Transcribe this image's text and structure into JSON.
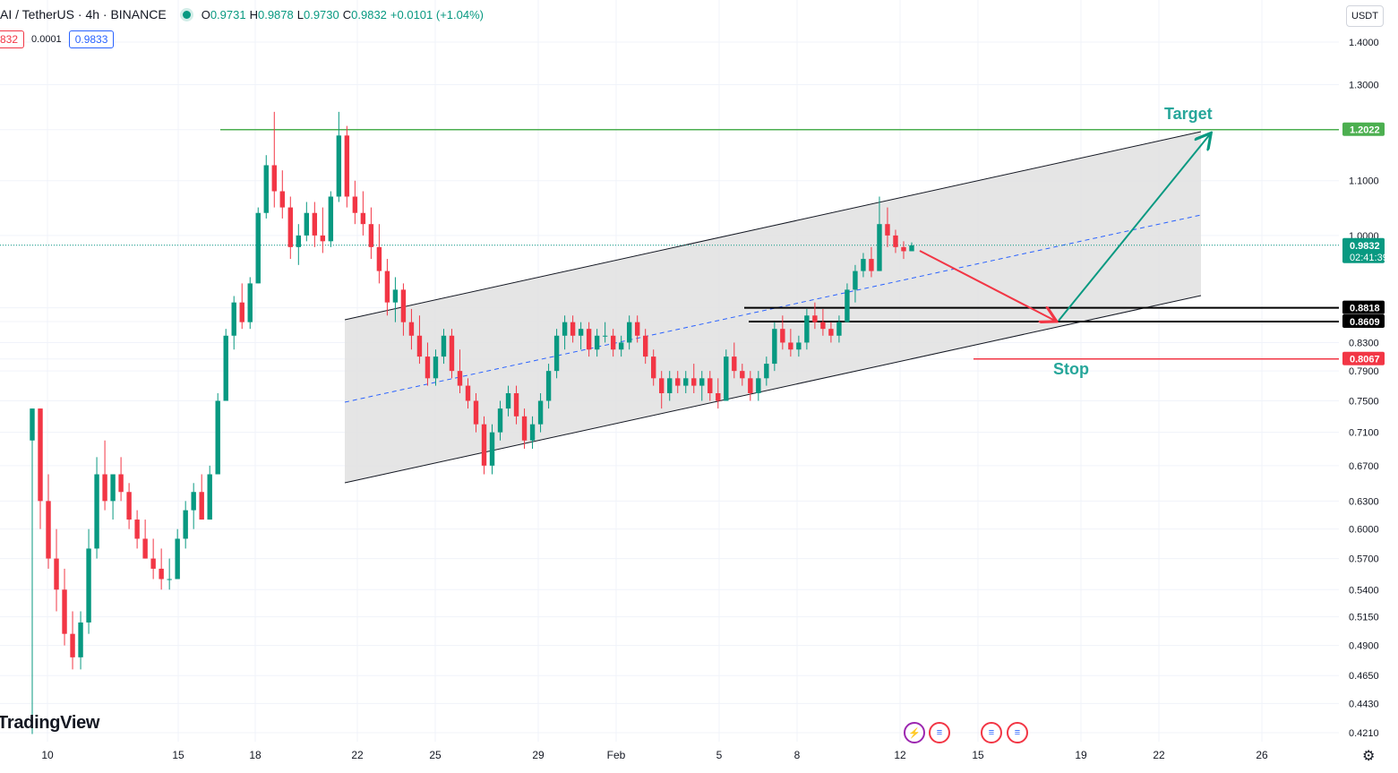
{
  "header": {
    "symbol": "AI / TetherUS · 4h · BINANCE",
    "open_label": "O",
    "open": "0.9731",
    "high_label": "H",
    "high": "0.9878",
    "low_label": "L",
    "low": "0.9730",
    "close_label": "C",
    "close": "0.9832",
    "change": "+0.0101 (+1.04%)"
  },
  "trade": {
    "sell": "832",
    "spread": "0.0001",
    "buy": "0.9833"
  },
  "currency_button": "USDT",
  "brand": "TradingView",
  "chart_data": {
    "type": "candlestick",
    "interval": "4h",
    "exchange": "BINANCE",
    "y_axis": {
      "scale": "log",
      "position": "right",
      "ticks": [
        "1.4000",
        "1.3000",
        "1.2022",
        "1.1000",
        "1.0000",
        "0.9832",
        "0.8818",
        "0.8609",
        "0.8300",
        "0.8067",
        "0.7900",
        "0.7500",
        "0.7100",
        "0.6700",
        "0.6300",
        "0.6000",
        "0.5700",
        "0.5400",
        "0.5150",
        "0.4900",
        "0.4650",
        "0.4430",
        "0.4210"
      ],
      "range": [
        0.41,
        1.45
      ]
    },
    "x_axis": {
      "ticks": [
        "10",
        "15",
        "18",
        "22",
        "25",
        "29",
        "Feb",
        "5",
        "8",
        "12",
        "15",
        "19",
        "22",
        "26"
      ]
    },
    "price_labels": {
      "target": {
        "value": "1.2022",
        "color": "#4caf50"
      },
      "current": {
        "value": "0.9832",
        "countdown": "02:41:39",
        "color": "#089981"
      },
      "support_high": {
        "value": "0.8818",
        "color": "#000000"
      },
      "support_low": {
        "value": "0.8609",
        "color": "#000000"
      },
      "stop": {
        "value": "0.8067",
        "color": "#f23645"
      }
    },
    "annotations": {
      "target_text": "Target",
      "stop_text": "Stop",
      "channel": "ascending parallel channel with dashed midline",
      "projection": "drop toward support, then rally to target"
    },
    "colors": {
      "up": "#089981",
      "down": "#f23645",
      "grid": "#f0f3fa",
      "channel_fill": "#e0e0e0"
    },
    "candles": [
      [
        0.7,
        0.74,
        0.42,
        0.74
      ],
      [
        0.74,
        0.74,
        0.6,
        0.63
      ],
      [
        0.63,
        0.66,
        0.56,
        0.57
      ],
      [
        0.57,
        0.6,
        0.52,
        0.54
      ],
      [
        0.54,
        0.56,
        0.49,
        0.5
      ],
      [
        0.5,
        0.52,
        0.47,
        0.48
      ],
      [
        0.48,
        0.52,
        0.47,
        0.51
      ],
      [
        0.51,
        0.6,
        0.5,
        0.58
      ],
      [
        0.58,
        0.68,
        0.57,
        0.66
      ],
      [
        0.66,
        0.7,
        0.62,
        0.63
      ],
      [
        0.63,
        0.66,
        0.61,
        0.66
      ],
      [
        0.66,
        0.68,
        0.63,
        0.64
      ],
      [
        0.64,
        0.65,
        0.6,
        0.61
      ],
      [
        0.61,
        0.62,
        0.58,
        0.59
      ],
      [
        0.59,
        0.61,
        0.57,
        0.57
      ],
      [
        0.57,
        0.59,
        0.55,
        0.56
      ],
      [
        0.56,
        0.58,
        0.54,
        0.55
      ],
      [
        0.55,
        0.57,
        0.54,
        0.55
      ],
      [
        0.55,
        0.6,
        0.55,
        0.59
      ],
      [
        0.59,
        0.63,
        0.58,
        0.62
      ],
      [
        0.62,
        0.65,
        0.6,
        0.64
      ],
      [
        0.64,
        0.66,
        0.61,
        0.61
      ],
      [
        0.61,
        0.67,
        0.61,
        0.66
      ],
      [
        0.66,
        0.76,
        0.66,
        0.75
      ],
      [
        0.75,
        0.85,
        0.75,
        0.84
      ],
      [
        0.84,
        0.9,
        0.82,
        0.89
      ],
      [
        0.89,
        0.92,
        0.85,
        0.86
      ],
      [
        0.86,
        0.93,
        0.85,
        0.92
      ],
      [
        0.92,
        1.05,
        0.92,
        1.04
      ],
      [
        1.04,
        1.15,
        1.03,
        1.13
      ],
      [
        1.13,
        1.24,
        1.05,
        1.08
      ],
      [
        1.08,
        1.12,
        1.03,
        1.05
      ],
      [
        1.05,
        1.07,
        0.96,
        0.98
      ],
      [
        0.98,
        1.02,
        0.95,
        1.0
      ],
      [
        1.0,
        1.06,
        0.99,
        1.04
      ],
      [
        1.04,
        1.06,
        0.98,
        1.0
      ],
      [
        1.0,
        1.05,
        0.97,
        0.99
      ],
      [
        0.99,
        1.08,
        0.98,
        1.07
      ],
      [
        1.07,
        1.24,
        1.06,
        1.19
      ],
      [
        1.19,
        1.21,
        1.05,
        1.07
      ],
      [
        1.07,
        1.1,
        1.02,
        1.04
      ],
      [
        1.04,
        1.08,
        1.0,
        1.02
      ],
      [
        1.02,
        1.05,
        0.96,
        0.98
      ],
      [
        0.98,
        1.02,
        0.92,
        0.94
      ],
      [
        0.94,
        0.96,
        0.87,
        0.89
      ],
      [
        0.89,
        0.93,
        0.86,
        0.91
      ],
      [
        0.91,
        0.92,
        0.84,
        0.86
      ],
      [
        0.86,
        0.88,
        0.82,
        0.84
      ],
      [
        0.84,
        0.87,
        0.8,
        0.81
      ],
      [
        0.81,
        0.83,
        0.77,
        0.78
      ],
      [
        0.78,
        0.82,
        0.77,
        0.81
      ],
      [
        0.81,
        0.85,
        0.8,
        0.84
      ],
      [
        0.84,
        0.85,
        0.78,
        0.79
      ],
      [
        0.79,
        0.82,
        0.76,
        0.77
      ],
      [
        0.77,
        0.78,
        0.74,
        0.75
      ],
      [
        0.75,
        0.76,
        0.71,
        0.72
      ],
      [
        0.72,
        0.73,
        0.66,
        0.67
      ],
      [
        0.67,
        0.72,
        0.66,
        0.71
      ],
      [
        0.71,
        0.75,
        0.7,
        0.74
      ],
      [
        0.74,
        0.77,
        0.73,
        0.76
      ],
      [
        0.76,
        0.77,
        0.72,
        0.73
      ],
      [
        0.73,
        0.74,
        0.69,
        0.7
      ],
      [
        0.7,
        0.73,
        0.69,
        0.72
      ],
      [
        0.72,
        0.76,
        0.71,
        0.75
      ],
      [
        0.75,
        0.8,
        0.74,
        0.79
      ],
      [
        0.79,
        0.85,
        0.78,
        0.84
      ],
      [
        0.84,
        0.87,
        0.82,
        0.86
      ],
      [
        0.86,
        0.87,
        0.83,
        0.84
      ],
      [
        0.84,
        0.86,
        0.82,
        0.85
      ],
      [
        0.85,
        0.86,
        0.81,
        0.82
      ],
      [
        0.82,
        0.85,
        0.81,
        0.84
      ],
      [
        0.84,
        0.86,
        0.83,
        0.84
      ],
      [
        0.84,
        0.85,
        0.81,
        0.82
      ],
      [
        0.82,
        0.84,
        0.81,
        0.83
      ],
      [
        0.83,
        0.87,
        0.82,
        0.86
      ],
      [
        0.86,
        0.87,
        0.83,
        0.84
      ],
      [
        0.84,
        0.85,
        0.8,
        0.81
      ],
      [
        0.81,
        0.82,
        0.77,
        0.78
      ],
      [
        0.78,
        0.79,
        0.74,
        0.76
      ],
      [
        0.76,
        0.79,
        0.75,
        0.78
      ],
      [
        0.78,
        0.79,
        0.76,
        0.77
      ],
      [
        0.77,
        0.79,
        0.76,
        0.78
      ],
      [
        0.78,
        0.8,
        0.76,
        0.77
      ],
      [
        0.77,
        0.79,
        0.75,
        0.78
      ],
      [
        0.78,
        0.79,
        0.75,
        0.76
      ],
      [
        0.76,
        0.78,
        0.74,
        0.75
      ],
      [
        0.75,
        0.82,
        0.75,
        0.81
      ],
      [
        0.81,
        0.83,
        0.78,
        0.79
      ],
      [
        0.79,
        0.8,
        0.77,
        0.78
      ],
      [
        0.78,
        0.79,
        0.75,
        0.76
      ],
      [
        0.76,
        0.79,
        0.75,
        0.78
      ],
      [
        0.78,
        0.81,
        0.77,
        0.8
      ],
      [
        0.8,
        0.86,
        0.79,
        0.85
      ],
      [
        0.85,
        0.87,
        0.82,
        0.83
      ],
      [
        0.83,
        0.85,
        0.81,
        0.82
      ],
      [
        0.82,
        0.84,
        0.81,
        0.83
      ],
      [
        0.83,
        0.88,
        0.82,
        0.87
      ],
      [
        0.87,
        0.89,
        0.85,
        0.86
      ],
      [
        0.86,
        0.88,
        0.84,
        0.85
      ],
      [
        0.85,
        0.86,
        0.83,
        0.84
      ],
      [
        0.84,
        0.87,
        0.83,
        0.86
      ],
      [
        0.86,
        0.92,
        0.86,
        0.91
      ],
      [
        0.91,
        0.95,
        0.89,
        0.94
      ],
      [
        0.94,
        0.97,
        0.93,
        0.96
      ],
      [
        0.96,
        0.98,
        0.93,
        0.94
      ],
      [
        0.94,
        1.07,
        0.94,
        1.02
      ],
      [
        1.02,
        1.05,
        0.98,
        1.0
      ],
      [
        1.0,
        1.01,
        0.97,
        0.98
      ],
      [
        0.98,
        0.99,
        0.96,
        0.973
      ],
      [
        0.973,
        0.988,
        0.973,
        0.983
      ]
    ]
  }
}
